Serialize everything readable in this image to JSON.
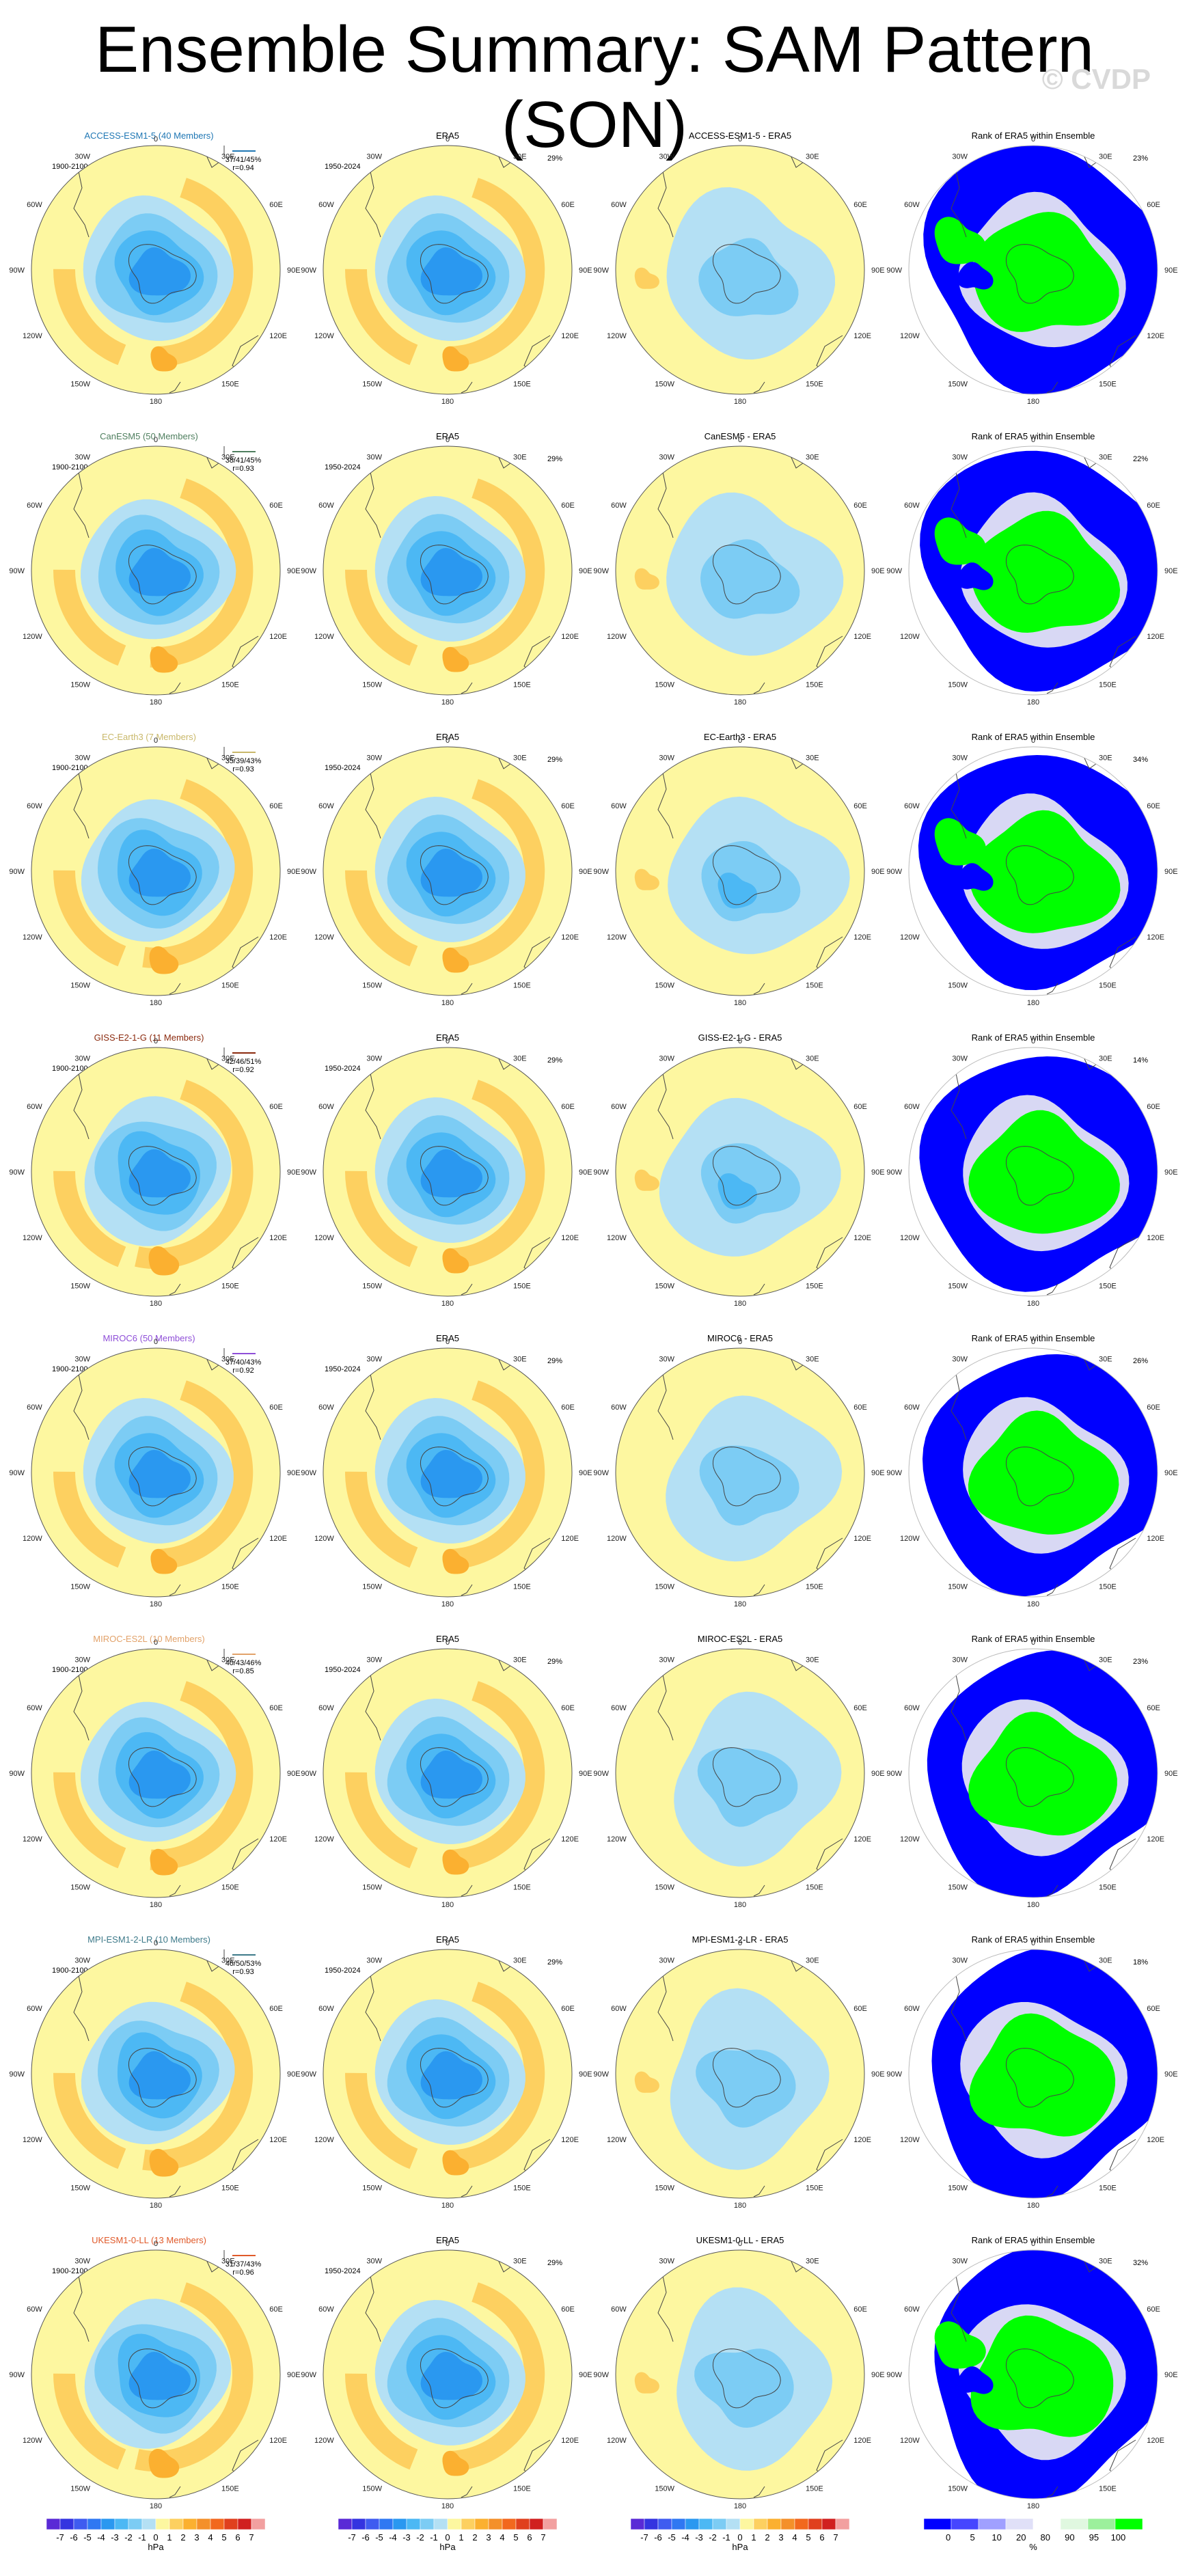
{
  "page": {
    "title": "Ensemble Summary: SAM Pattern (SON)",
    "watermark": "© CVDP"
  },
  "map_labels": {
    "lat0": "0",
    "lon180": "180",
    "w30": "30W",
    "w60": "60W",
    "w90": "90W",
    "w120": "120W",
    "w150": "150W",
    "e30": "30E",
    "e60": "60E",
    "e90": "90E",
    "e120": "120E",
    "e150": "150E"
  },
  "column_titles": {
    "obs": "ERA5",
    "rank": "Rank of ERA5 within Ensemble"
  },
  "period_labels": {
    "model": "1900-2100",
    "obs": "1950-2024"
  },
  "obs_pct": "29%",
  "rows": [
    {
      "model": "ACCESS-ESM1-5",
      "title": "ACCESS-ESM1-5 (40 Members)",
      "diff_title": "ACCESS-ESM1-5 - ERA5",
      "color": "#1f77b4",
      "stats1": "37/41/45%",
      "stats2": "r=0.94",
      "rank_pct": "23%",
      "diff_var": 0
    },
    {
      "model": "CanESM5",
      "title": "CanESM5 (50 Members)",
      "diff_title": "CanESM5 - ERA5",
      "color": "#4f7f5f",
      "stats1": "38/41/45%",
      "stats2": "r=0.93",
      "rank_pct": "22%",
      "diff_var": 1
    },
    {
      "model": "EC-Earth3",
      "title": "EC-Earth3 (7 Members)",
      "diff_title": "EC-Earth3 - ERA5",
      "color": "#c9b86a",
      "stats1": "35/39/43%",
      "stats2": "r=0.93",
      "rank_pct": "34%",
      "diff_var": 2
    },
    {
      "model": "GISS-E2-1-G",
      "title": "GISS-E2-1-G (11 Members)",
      "diff_title": "GISS-E2-1-G - ERA5",
      "color": "#8b2a0e",
      "stats1": "42/46/51%",
      "stats2": "r=0.92",
      "rank_pct": "14%",
      "diff_var": 3
    },
    {
      "model": "MIROC6",
      "title": "MIROC6 (50 Members)",
      "diff_title": "MIROC6 - ERA5",
      "color": "#8f4fd8",
      "stats1": "37/40/43%",
      "stats2": "r=0.92",
      "rank_pct": "26%",
      "diff_var": 4
    },
    {
      "model": "MIROC-ES2L",
      "title": "MIROC-ES2L (10 Members)",
      "diff_title": "MIROC-ES2L - ERA5",
      "color": "#e2a26a",
      "stats1": "40/43/46%",
      "stats2": "r=0.85",
      "rank_pct": "23%",
      "diff_var": 5
    },
    {
      "model": "MPI-ESM1-2-LR",
      "title": "MPI-ESM1-2-LR (10 Members)",
      "diff_title": "MPI-ESM1-2-LR - ERA5",
      "color": "#3e7a8a",
      "stats1": "46/50/53%",
      "stats2": "r=0.93",
      "rank_pct": "18%",
      "diff_var": 6
    },
    {
      "model": "UKESM1-0-LL",
      "title": "UKESM1-0-LL (13 Members)",
      "diff_title": "UKESM1-0-LL - ERA5",
      "color": "#e05a2a",
      "stats1": "31/37/43%",
      "stats2": "r=0.96",
      "rank_pct": "32%",
      "diff_var": 7
    }
  ],
  "colorbar_hpa": {
    "unit": "hPa",
    "ticks": [
      "-7",
      "-6",
      "-5",
      "-4",
      "-3",
      "-2",
      "-1",
      "0",
      "1",
      "2",
      "3",
      "4",
      "5",
      "6",
      "7"
    ],
    "colors": [
      "#5a2ad6",
      "#3434e0",
      "#3f5cf0",
      "#2f78f2",
      "#2a98f0",
      "#4cb8f4",
      "#7cccf4",
      "#b4e0f4",
      "#fdf7a0",
      "#fdd060",
      "#fbb030",
      "#f4902a",
      "#f2681e",
      "#e0401e",
      "#d02020",
      "#f2a0a0"
    ]
  },
  "colorbar_rank": {
    "unit": "%",
    "ticks": [
      "0",
      "5",
      "10",
      "20",
      "80",
      "90",
      "95",
      "100"
    ],
    "colors": [
      "#0000ff",
      "#4646ff",
      "#a0a0ff",
      "#e0e0f8",
      "#ffffff",
      "#e0f8e0",
      "#9cf09c",
      "#00ff00"
    ]
  },
  "palette": {
    "neg4": "#2a98f0",
    "neg3": "#4cb8f4",
    "neg2": "#7cccf4",
    "neg1": "#b4e0f4",
    "pos0": "#fdf7a0",
    "pos1": "#fdd060",
    "pos2": "#fbb030",
    "rank_blue": "#0000ff",
    "rank_green": "#00ff00",
    "rank_light": "#d8d8f4"
  }
}
